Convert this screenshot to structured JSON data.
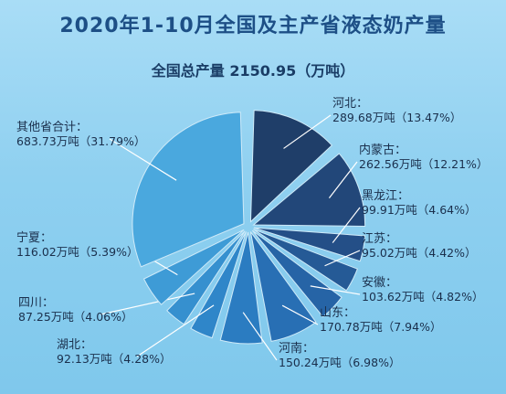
{
  "chart_data": {
    "type": "pie",
    "title": "2020年1-10月全国及主产省液态奶产量",
    "subtitle": "全国总产量 2150.95（万吨）",
    "unit": "万吨",
    "slices": [
      {
        "name": "河北",
        "value": 289.68,
        "percent": "13.47%",
        "color": "#1f3e69",
        "text": "289.68万吨（13.47%）"
      },
      {
        "name": "内蒙古",
        "value": 262.56,
        "percent": "12.21%",
        "color": "#224779",
        "text": "262.56万吨（12.21%）"
      },
      {
        "name": "黑龙江",
        "value": 99.91,
        "percent": "4.64%",
        "color": "#244f87",
        "text": "99.91万吨（4.64%）"
      },
      {
        "name": "江苏",
        "value": 95.02,
        "percent": "4.42%",
        "color": "#255a96",
        "text": "95.02万吨（4.42%）"
      },
      {
        "name": "安徽",
        "value": 103.62,
        "percent": "4.82%",
        "color": "#2664a6",
        "text": "103.62万吨（4.82%）"
      },
      {
        "name": "山东",
        "value": 170.78,
        "percent": "7.94%",
        "color": "#286fb4",
        "text": "170.78万吨（7.94%）"
      },
      {
        "name": "河南",
        "value": 150.24,
        "percent": "6.98%",
        "color": "#2b7cc1",
        "text": "150.24万吨（6.98%）"
      },
      {
        "name": "湖北",
        "value": 92.13,
        "percent": "4.28%",
        "color": "#2f86c9",
        "text": "92.13万吨（4.28%）"
      },
      {
        "name": "四川",
        "value": 87.25,
        "percent": "4.06%",
        "color": "#3690cf",
        "text": "87.25万吨（4.06%）"
      },
      {
        "name": "宁夏",
        "value": 116.02,
        "percent": "5.39%",
        "color": "#3e9bd6",
        "text": "116.02万吨（5.39%）"
      },
      {
        "name": "其他省合计",
        "value": 683.73,
        "percent": "31.79%",
        "color": "#4aa8de",
        "text": "683.73万吨（31.79%）"
      }
    ]
  }
}
